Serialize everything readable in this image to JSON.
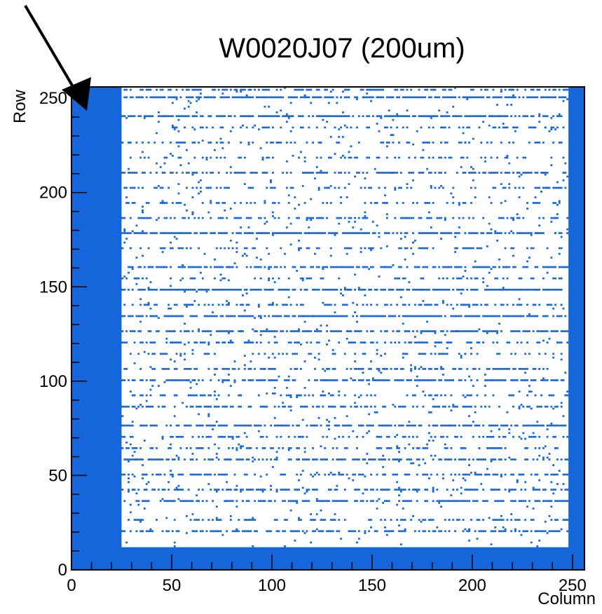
{
  "chart_data": {
    "type": "heatmap",
    "title": "W0020J07 (200um)",
    "xlabel": "Column",
    "ylabel": "Row",
    "xlim": [
      0,
      256
    ],
    "ylim": [
      0,
      256
    ],
    "xticks": [
      0,
      50,
      100,
      150,
      200,
      250
    ],
    "yticks": [
      0,
      50,
      100,
      150,
      200,
      250
    ],
    "fill_color": "#1565db",
    "annotation": "arrow pointing to top-left corner pixel region",
    "filled_regions": [
      {
        "name": "left band",
        "x": [
          0,
          25
        ],
        "y": [
          0,
          256
        ]
      },
      {
        "name": "bottom band",
        "x": [
          0,
          256
        ],
        "y": [
          0,
          12
        ]
      },
      {
        "name": "right band",
        "x": [
          248,
          256
        ],
        "y": [
          0,
          256
        ]
      }
    ],
    "partially_filled_rows": [
      20,
      26,
      36,
      42,
      50,
      58,
      64,
      70,
      76,
      86,
      92,
      100,
      106,
      114,
      120,
      126,
      134,
      140,
      148,
      154,
      160,
      170,
      178,
      186,
      194,
      202,
      210,
      218,
      226,
      234,
      240,
      250,
      254
    ]
  }
}
